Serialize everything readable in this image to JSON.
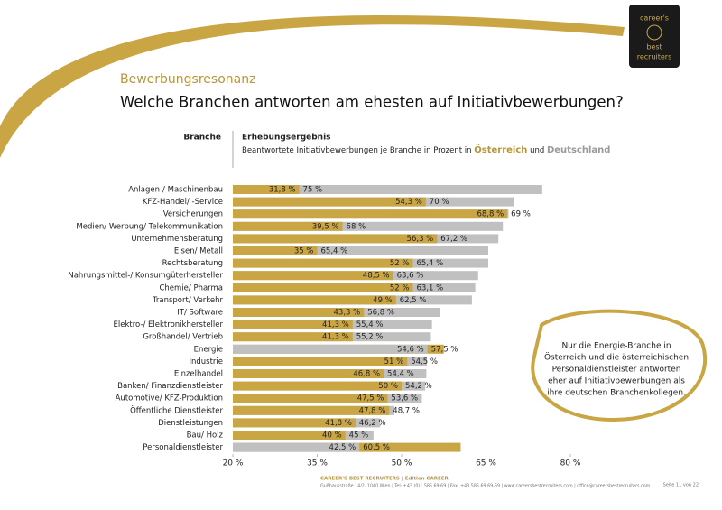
{
  "header": {
    "section": "Bewerbungsresonanz",
    "logo": [
      "career's",
      "best",
      "recruiters"
    ],
    "page": "Seite 11 von 22"
  },
  "chart_data": {
    "type": "overlap-bar",
    "title": "Welche Branchen antworten am ehesten auf Initiativbewerbungen?",
    "category_header": "Branche",
    "value_header": "Erhebungsergebnis",
    "subtitle_parts": [
      "Beantwortete Initiativbewerbungen je Branche in Prozent  in",
      "und"
    ],
    "categories": [
      "Anlagen-/ Maschinenbau",
      "KFZ-Handel/ -Service",
      "Versicherungen",
      "Medien/ Werbung/ Telekommunikation",
      "Unternehmensberatung",
      "Eisen/ Metall",
      "Rechtsberatung",
      "Nahrungsmittel-/ Konsumgüterhersteller",
      "Chemie/ Pharma",
      "Transport/ Verkehr",
      "IT/ Software",
      "Elektro-/ Elektronikhersteller",
      "Großhandel/ Vertrieb",
      "Energie",
      "Industrie",
      "Einzelhandel",
      "Banken/ Finanzdienstleister",
      "Automotive/ KFZ-Produktion",
      "Öffentliche Dienstleister",
      "Dienstleistungen",
      "Bau/ Holz",
      "Personaldienstleister"
    ],
    "series": [
      {
        "name": "Österreich",
        "color": "#c9a544",
        "values": [
          31.8,
          54.3,
          68.8,
          39.5,
          56.3,
          35,
          52,
          48.5,
          52,
          49,
          43.3,
          41.3,
          41.3,
          57.5,
          51,
          46.8,
          50,
          47.5,
          47.8,
          41.8,
          40,
          60.5
        ],
        "value_labels": [
          "31,8 %",
          "54,3 %",
          "68,8 %",
          "39,5 %",
          "56,3 %",
          "35 %",
          "52 %",
          "48,5 %",
          "52 %",
          "49 %",
          "43,3 %",
          "41,3 %",
          "41,3 %",
          "57,5 %",
          "51 %",
          "46,8 %",
          "50 %",
          "47,5 %",
          "47,8 %",
          "41,8 %",
          "40 %",
          "60,5 %"
        ]
      },
      {
        "name": "Deutschland",
        "color": "#c0c0c0",
        "values": [
          75,
          70,
          69,
          68,
          67.2,
          65.4,
          65.4,
          63.6,
          63.1,
          62.5,
          56.8,
          55.4,
          55.2,
          54.6,
          54.5,
          54.4,
          54.2,
          53.6,
          48.7,
          46.2,
          45,
          42.5
        ],
        "value_labels": [
          "75 %",
          "70 %",
          "69 %",
          "68 %",
          "67,2 %",
          "65,4 %",
          "65,4 %",
          "63,6 %",
          "63,1 %",
          "62,5 %",
          "56,8 %",
          "55,4 %",
          "55,2 %",
          "54,6 %",
          "54,5 %",
          "54,4 %",
          "54,2 %",
          "53,6 %",
          "48,7 %",
          "46,2 %",
          "45 %",
          "42,5 %"
        ]
      }
    ],
    "xlim": [
      20,
      80
    ],
    "xticks": [
      {
        "value": 20,
        "label": "20 %"
      },
      {
        "value": 35,
        "label": "35 %"
      },
      {
        "value": 50,
        "label": "50 %"
      },
      {
        "value": 65,
        "label": "65 %"
      },
      {
        "value": 80,
        "label": "80 %"
      }
    ],
    "annotation": [
      "Nur die Energie-Branche in",
      "Österreich und die österreichischen",
      "Personaldienstleister antworten",
      "eher auf Initiativbewerbungen als",
      "ihre deutschen Branchenkollegen."
    ]
  },
  "footer": {
    "brand": "CAREER'S BEST RECRUITERS  |  Edition CAREER",
    "address": "Gußhausstraße 14/2, 1040 Wien  |  Tel: +43 (0)1 585 69 69  |  Fax: +43 585 69 69-69  |  www.careersbestrecruiters.com  |  office@careersbestrecruiters.com"
  }
}
